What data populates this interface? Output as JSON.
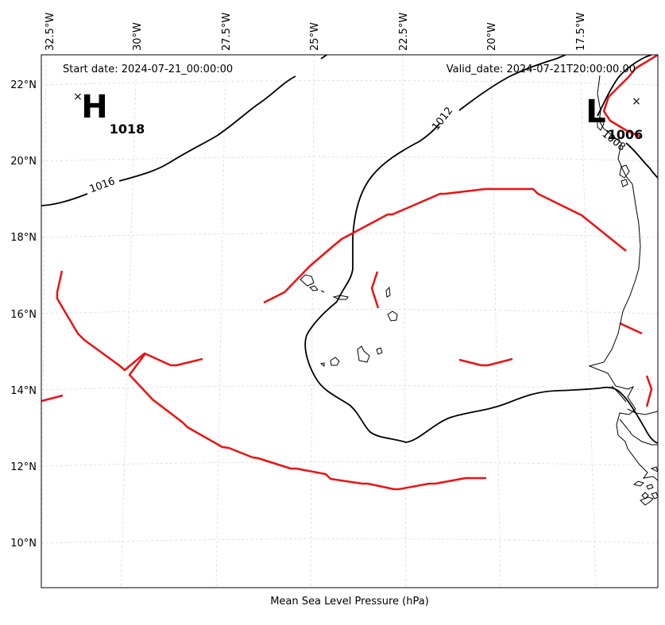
{
  "map": {
    "start_label": "Start date: 2024-07-21_00:00:00",
    "valid_label": "Valid_date: 2024-07-21T20:00:00.00",
    "bottom_label": "Mean Sea Level Pressure (hPa)",
    "lon_ticks": [
      "32.5°W",
      "30°W",
      "27.5°W",
      "25°W",
      "22.5°W",
      "20°W",
      "17.5°W"
    ],
    "lat_ticks": [
      "22°N",
      "20°N",
      "18°N",
      "16°N",
      "14°N",
      "12°N",
      "10°N"
    ],
    "contour_labels": [
      "1016",
      "1012",
      "1008"
    ],
    "high_center": {
      "symbol": "H",
      "value": "1018"
    },
    "low_center": {
      "symbol": "L",
      "value": "1006"
    },
    "colors": {
      "isobar": "#000000",
      "front": "#ee1111",
      "coast": "#000000",
      "grid": "#cccccc"
    }
  }
}
